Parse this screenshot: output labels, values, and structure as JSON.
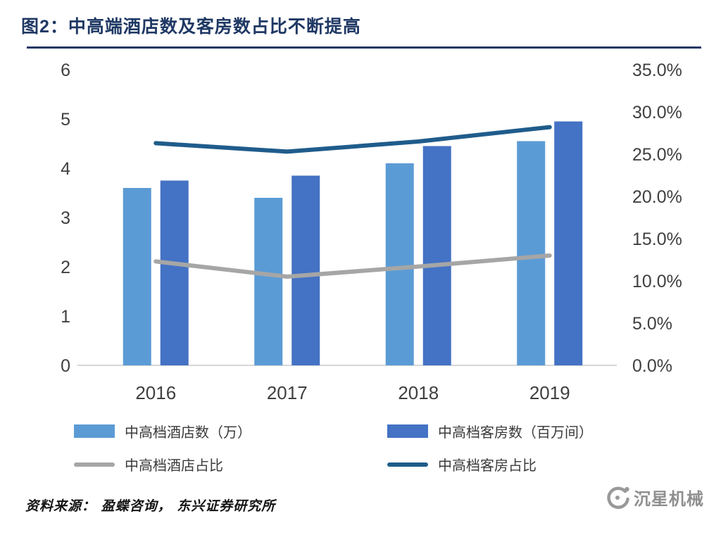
{
  "footer": {
    "source": "资料来源： 盈蝶咨询， 东兴证券研究所",
    "brand": "沉星机械"
  },
  "chart_data": {
    "type": "bar",
    "subtype": "bar+line combo, dual axis",
    "title": "图2：中高端酒店数及客房数占比不断提高",
    "categories": [
      "2016",
      "2017",
      "2018",
      "2019"
    ],
    "bar_series": [
      {
        "name": "中高档酒店数（万）",
        "color": "#5B9BD5",
        "axis": "left",
        "values": [
          3.6,
          3.4,
          4.1,
          4.55
        ]
      },
      {
        "name": "中高档客房数（百万间）",
        "color": "#4472C4",
        "axis": "left",
        "values": [
          3.75,
          3.85,
          4.45,
          4.95
        ]
      }
    ],
    "line_series": [
      {
        "name": "中高档酒店占比",
        "color": "#A6A6A6",
        "axis": "right",
        "values": [
          12.3,
          10.5,
          11.7,
          13.0
        ]
      },
      {
        "name": "中高档客房占比",
        "color": "#1F5C8B",
        "axis": "right",
        "values": [
          26.3,
          25.3,
          26.5,
          28.2
        ]
      }
    ],
    "left_axis": {
      "min": 0,
      "max": 6,
      "step": 1,
      "ticks": [
        "0",
        "1",
        "2",
        "3",
        "4",
        "5",
        "6"
      ]
    },
    "right_axis": {
      "min": 0,
      "max": 35,
      "step": 5,
      "ticks": [
        "0.0%",
        "5.0%",
        "10.0%",
        "15.0%",
        "20.0%",
        "25.0%",
        "30.0%",
        "35.0%"
      ]
    },
    "grid": false,
    "legend_position": "bottom",
    "axis_text_color": "#404040"
  }
}
